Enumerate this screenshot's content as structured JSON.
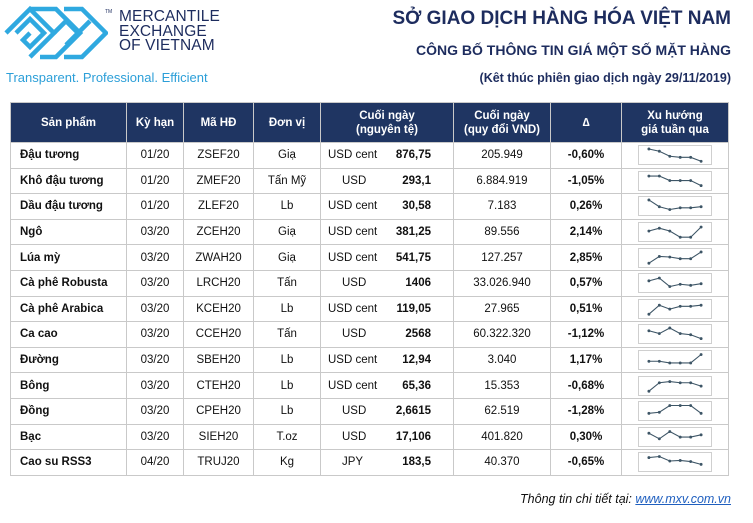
{
  "logo": {
    "name_lines": [
      "MERCANTILE",
      "EXCHANGE",
      "OF VIETNAM"
    ],
    "trademark": "TM",
    "tagline": "Transparent. Professional. Efficient"
  },
  "header": {
    "title": "SỞ GIAO DỊCH HÀNG HÓA VIỆT NAM",
    "subtitle": "CÔNG BỐ THÔNG TIN GIÁ MỘT SỐ MẶT HÀNG",
    "session_note": "(Kêt thúc phiên giao dịch ngày 29/11/2019)"
  },
  "table": {
    "columns": {
      "product": "Sản phẩm",
      "term": "Kỳ hạn",
      "contract": "Mã HĐ",
      "unit": "Đơn vị",
      "close_orig_1": "Cuối ngày",
      "close_orig_2": "(nguyên tệ)",
      "close_vnd_1": "Cuối ngày",
      "close_vnd_2": "(quy đổi VND)",
      "change": "∆",
      "trend_1": "Xu hướng",
      "trend_2": "giá tuần qua"
    },
    "rows": [
      {
        "product": "Đậu tương",
        "term": "01/20",
        "contract": "ZSEF20",
        "unit": "Giạ",
        "currency": "USD cent",
        "price": "876,75",
        "vnd": "205.949",
        "change": "-0,60%",
        "dir": "down",
        "trend": [
          2,
          6,
          15,
          17,
          17,
          24
        ]
      },
      {
        "product": "Khô đậu tương",
        "term": "01/20",
        "contract": "ZMEF20",
        "unit": "Tấn Mỹ",
        "currency": "USD",
        "price": "293,1",
        "vnd": "6.884.919",
        "change": "-1,05%",
        "dir": "down",
        "trend": [
          4,
          4,
          12,
          12,
          12,
          21
        ]
      },
      {
        "product": "Dầu đậu tương",
        "term": "01/20",
        "contract": "ZLEF20",
        "unit": "Lb",
        "currency": "USD cent",
        "price": "30,58",
        "vnd": "7.183",
        "change": "0,26%",
        "dir": "up",
        "trend": [
          2,
          14,
          19,
          16,
          16,
          14
        ]
      },
      {
        "product": "Ngô",
        "term": "03/20",
        "contract": "ZCEH20",
        "unit": "Giạ",
        "currency": "USD cent",
        "price": "381,25",
        "vnd": "89.556",
        "change": "2,14%",
        "dir": "up",
        "trend": [
          11,
          6,
          11,
          22,
          22,
          4
        ]
      },
      {
        "product": "Lúa mỳ",
        "term": "03/20",
        "contract": "ZWAH20",
        "unit": "Giạ",
        "currency": "USD cent",
        "price": "541,75",
        "vnd": "127.257",
        "change": "2,85%",
        "dir": "up",
        "trend": [
          22,
          10,
          11,
          14,
          14,
          2
        ]
      },
      {
        "product": "Cà phê Robusta",
        "term": "03/20",
        "contract": "LRCH20",
        "unit": "Tấn",
        "currency": "USD",
        "price": "1406",
        "vnd": "33.026.940",
        "change": "0,57%",
        "dir": "up",
        "trend": [
          9,
          4,
          19,
          15,
          17,
          14
        ]
      },
      {
        "product": "Cà phê Arabica",
        "term": "03/20",
        "contract": "KCEH20",
        "unit": "Lb",
        "currency": "USD cent",
        "price": "119,05",
        "vnd": "27.965",
        "change": "0,51%",
        "dir": "up",
        "trend": [
          22,
          6,
          13,
          8,
          8,
          6
        ]
      },
      {
        "product": "Ca cao",
        "term": "03/20",
        "contract": "CCEH20",
        "unit": "Tấn",
        "currency": "USD",
        "price": "2568",
        "vnd": "60.322.320",
        "change": "-1,12%",
        "dir": "down",
        "trend": [
          7,
          12,
          2,
          12,
          14,
          21
        ]
      },
      {
        "product": "Đường",
        "term": "03/20",
        "contract": "SBEH20",
        "unit": "Lb",
        "currency": "USD cent",
        "price": "12,94",
        "vnd": "3.040",
        "change": "1,17%",
        "dir": "up",
        "trend": [
          15,
          15,
          18,
          18,
          18,
          3
        ]
      },
      {
        "product": "Bông",
        "term": "03/20",
        "contract": "CTEH20",
        "unit": "Lb",
        "currency": "USD cent",
        "price": "65,36",
        "vnd": "15.353",
        "change": "-0,68%",
        "dir": "down",
        "trend": [
          22,
          7,
          5,
          7,
          7,
          13
        ]
      },
      {
        "product": "Đồng",
        "term": "03/20",
        "contract": "CPEH20",
        "unit": "Lb",
        "currency": "USD",
        "price": "2,6615",
        "vnd": "62.519",
        "change": "-1,28%",
        "dir": "down",
        "trend": [
          17,
          15,
          3,
          3,
          3,
          17
        ]
      },
      {
        "product": "Bạc",
        "term": "03/20",
        "contract": "SIEH20",
        "unit": "T.oz",
        "currency": "USD",
        "price": "17,106",
        "vnd": "401.820",
        "change": "0,30%",
        "dir": "up",
        "trend": [
          6,
          16,
          3,
          13,
          13,
          9
        ]
      },
      {
        "product": "Cao su RSS3",
        "term": "04/20",
        "contract": "TRUJ20",
        "unit": "Kg",
        "currency": "JPY",
        "price": "183,5",
        "vnd": "40.370",
        "change": "-0,65%",
        "dir": "down",
        "trend": [
          5,
          3,
          11,
          10,
          12,
          17
        ]
      }
    ]
  },
  "colors": {
    "header_bg": "#1f3562",
    "title": "#1d2c5e",
    "tagline": "#2c9fd8",
    "logo_mark": "#2fa9e0",
    "up": "#1aa64a",
    "down": "#c4161c",
    "sparkline": "#3d5566"
  },
  "footer": {
    "label": "Thông tin chi tiết tại: ",
    "link": "www.mxv.com.vn"
  }
}
